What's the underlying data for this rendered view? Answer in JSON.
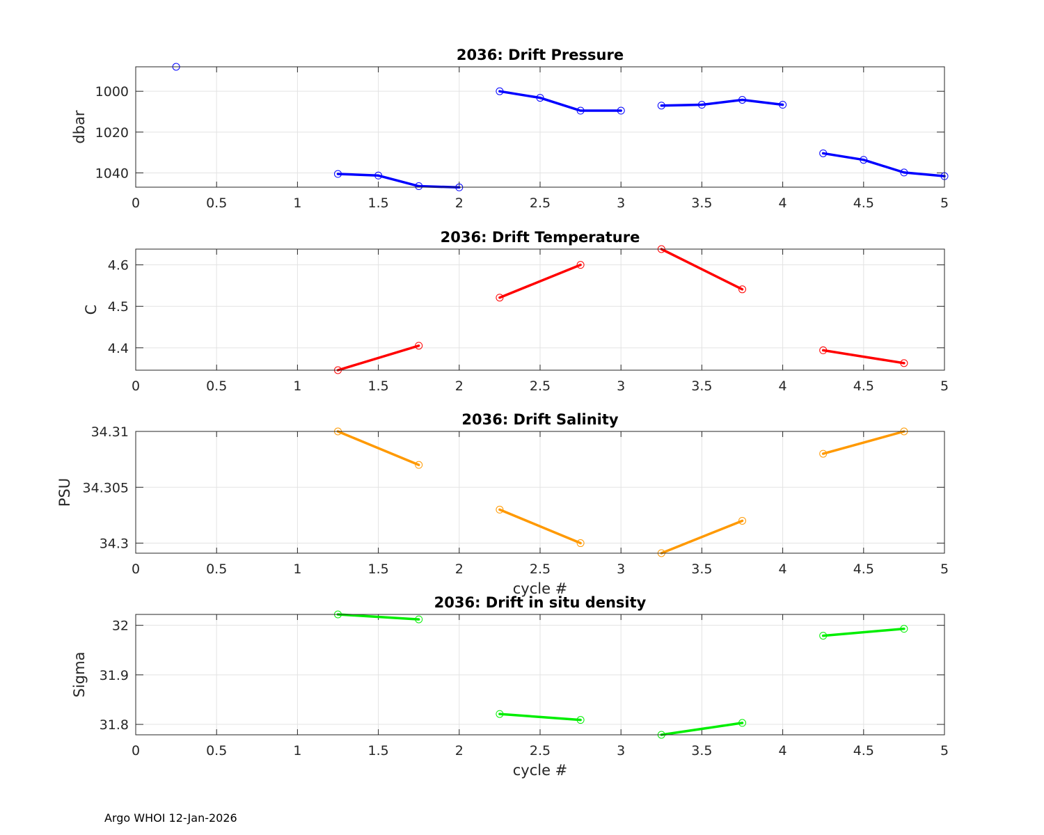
{
  "footer": "Argo WHOI 12-Jan-2026",
  "chart_data": [
    {
      "type": "line",
      "title": "2036: Drift Pressure",
      "xlabel": "",
      "ylabel": "dbar",
      "xlim": [
        0,
        5
      ],
      "ylim": [
        988,
        1047
      ],
      "y_reversed": true,
      "xticks": [
        "0",
        "0.5",
        "1",
        "1.5",
        "2",
        "2.5",
        "3",
        "3.5",
        "4",
        "4.5",
        "5"
      ],
      "yticks": [
        {
          "v": 1000,
          "label": "1000"
        },
        {
          "v": 1020,
          "label": "1020"
        },
        {
          "v": 1040,
          "label": "1040"
        }
      ],
      "grid": true,
      "color": "#0000ff",
      "segments": [
        [
          [
            0.25,
            988
          ]
        ],
        [
          [
            1.25,
            1040.5
          ],
          [
            1.5,
            1041.3
          ],
          [
            1.75,
            1046.5
          ],
          [
            2.0,
            1047.1
          ]
        ],
        [
          [
            2.25,
            1000
          ],
          [
            2.5,
            1003.2
          ],
          [
            2.75,
            1009.5
          ],
          [
            3.0,
            1009.5
          ]
        ],
        [
          [
            3.25,
            1007
          ],
          [
            3.5,
            1006.6
          ],
          [
            3.75,
            1004.2
          ],
          [
            4.0,
            1006.6
          ]
        ],
        [
          [
            4.25,
            1030.4
          ],
          [
            4.5,
            1033.6
          ],
          [
            4.75,
            1039.8
          ],
          [
            5.0,
            1041.6
          ]
        ]
      ]
    },
    {
      "type": "line",
      "title": "2036: Drift Temperature",
      "xlabel": "",
      "ylabel": "C",
      "xlim": [
        0,
        5
      ],
      "ylim": [
        4.346,
        4.638
      ],
      "y_reversed": false,
      "xticks": [
        "0",
        "0.5",
        "1",
        "1.5",
        "2",
        "2.5",
        "3",
        "3.5",
        "4",
        "4.5",
        "5"
      ],
      "yticks": [
        {
          "v": 4.4,
          "label": "4.4"
        },
        {
          "v": 4.5,
          "label": "4.5"
        },
        {
          "v": 4.6,
          "label": "4.6"
        }
      ],
      "grid": true,
      "color": "#ff0000",
      "segments": [
        [
          [
            1.25,
            4.346
          ],
          [
            1.75,
            4.405
          ]
        ],
        [
          [
            2.25,
            4.521
          ],
          [
            2.75,
            4.6
          ]
        ],
        [
          [
            3.25,
            4.638
          ],
          [
            3.75,
            4.541
          ]
        ],
        [
          [
            4.25,
            4.394
          ],
          [
            4.75,
            4.363
          ]
        ]
      ]
    },
    {
      "type": "line",
      "title": "2036: Drift Salinity",
      "xlabel": "cycle #",
      "ylabel": "PSU",
      "xlim": [
        0,
        5
      ],
      "ylim": [
        34.2991,
        34.31
      ],
      "y_reversed": false,
      "xticks": [
        "0",
        "0.5",
        "1",
        "1.5",
        "2",
        "2.5",
        "3",
        "3.5",
        "4",
        "4.5",
        "5"
      ],
      "yticks": [
        {
          "v": 34.3,
          "label": "34.3"
        },
        {
          "v": 34.305,
          "label": "34.305"
        },
        {
          "v": 34.31,
          "label": "34.31"
        }
      ],
      "grid": true,
      "color": "#ff9900",
      "segments": [
        [
          [
            1.25,
            34.31
          ],
          [
            1.75,
            34.307
          ]
        ],
        [
          [
            2.25,
            34.303
          ],
          [
            2.75,
            34.3
          ]
        ],
        [
          [
            3.25,
            34.2991
          ],
          [
            3.75,
            34.302
          ]
        ],
        [
          [
            4.25,
            34.308
          ],
          [
            4.75,
            34.31
          ]
        ]
      ]
    },
    {
      "type": "line",
      "title": "2036: Drift in situ density",
      "xlabel": "cycle #",
      "ylabel": "Sigma",
      "xlim": [
        0,
        5
      ],
      "ylim": [
        31.779,
        32.022
      ],
      "y_reversed": false,
      "xticks": [
        "0",
        "0.5",
        "1",
        "1.5",
        "2",
        "2.5",
        "3",
        "3.5",
        "4",
        "4.5",
        "5"
      ],
      "yticks": [
        {
          "v": 31.8,
          "label": "31.8"
        },
        {
          "v": 31.9,
          "label": "31.9"
        },
        {
          "v": 32.0,
          "label": "32"
        }
      ],
      "grid": true,
      "color": "#00ee00",
      "segments": [
        [
          [
            1.25,
            32.022
          ],
          [
            1.75,
            32.012
          ]
        ],
        [
          [
            2.25,
            31.821
          ],
          [
            2.75,
            31.809
          ]
        ],
        [
          [
            3.25,
            31.779
          ],
          [
            3.75,
            31.803
          ]
        ],
        [
          [
            4.25,
            31.979
          ],
          [
            4.75,
            31.993
          ]
        ]
      ]
    }
  ]
}
